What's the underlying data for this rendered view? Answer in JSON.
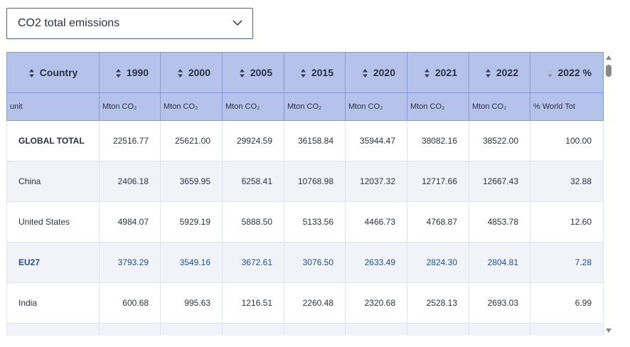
{
  "dropdown": {
    "selected": "CO2 total emissions"
  },
  "table": {
    "columns": [
      "Country",
      "1990",
      "2000",
      "2005",
      "2015",
      "2020",
      "2021",
      "2022",
      "2022 %"
    ],
    "units": [
      "unit",
      "Mton CO₂",
      "Mton CO₂",
      "Mton CO₂",
      "Mton CO₂",
      "Mton CO₂",
      "Mton CO₂",
      "Mton CO₂",
      "% World Tot"
    ],
    "rows": [
      [
        "GLOBAL TOTAL",
        "22516.77",
        "25621.00",
        "29924.59",
        "36158.84",
        "35944.47",
        "38082.16",
        "38522.00",
        "100.00"
      ],
      [
        "China",
        "2406.18",
        "3659.95",
        "6258.41",
        "10768.98",
        "12037.32",
        "12717.66",
        "12667.43",
        "32.88"
      ],
      [
        "United States",
        "4984.07",
        "5929.19",
        "5888.50",
        "5133.56",
        "4466.73",
        "4768.87",
        "4853.78",
        "12.60"
      ],
      [
        "EU27",
        "3793.29",
        "3549.16",
        "3672.61",
        "3076.50",
        "2633.49",
        "2824.30",
        "2804.81",
        "7.28"
      ],
      [
        "India",
        "600.68",
        "995.63",
        "1216.51",
        "2260.48",
        "2320.68",
        "2528.13",
        "2693.03",
        "6.99"
      ]
    ]
  }
}
